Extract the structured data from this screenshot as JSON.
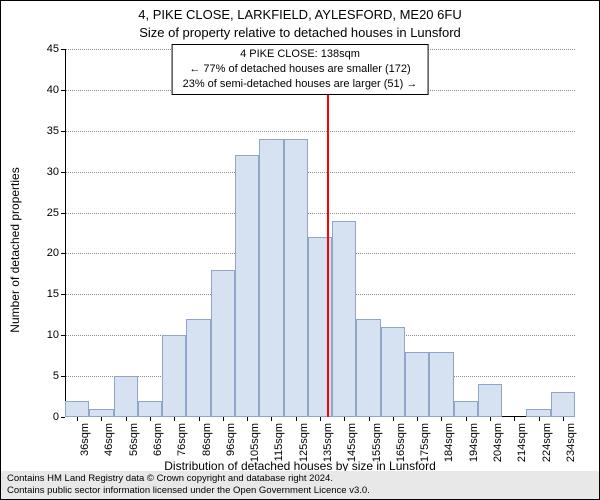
{
  "titles": {
    "address": "4, PIKE CLOSE, LARKFIELD, AYLESFORD, ME20 6FU",
    "subtitle": "Size of property relative to detached houses in Lunsford"
  },
  "info_box": {
    "line1": "4 PIKE CLOSE: 138sqm",
    "line2": "← 77% of detached houses are smaller (172)",
    "line3": "23% of semi-detached houses are larger (51) →"
  },
  "axes": {
    "xlabel": "Distribution of detached houses by size in Lunsford",
    "ylabel": "Number of detached properties",
    "ylim": [
      0,
      45
    ],
    "ytick_step": 5,
    "x_categories": [
      "36sqm",
      "46sqm",
      "56sqm",
      "66sqm",
      "76sqm",
      "86sqm",
      "96sqm",
      "105sqm",
      "115sqm",
      "125sqm",
      "135sqm",
      "145sqm",
      "155sqm",
      "165sqm",
      "175sqm",
      "184sqm",
      "194sqm",
      "204sqm",
      "214sqm",
      "224sqm",
      "234sqm"
    ]
  },
  "chart": {
    "type": "histogram",
    "values": [
      2,
      1,
      5,
      2,
      10,
      12,
      18,
      32,
      34,
      34,
      22,
      24,
      12,
      11,
      8,
      8,
      2,
      4,
      0,
      1,
      3
    ],
    "bar_fill": "#d6e1f1",
    "bar_stroke": "#8fa6c8",
    "bar_width_ratio": 1.0,
    "background_color": "#ffffff",
    "grid_color": "rgba(0,0,0,0.45)",
    "reference_line": {
      "x_value": 138,
      "x_range": [
        31,
        239
      ],
      "color": "#ff0000"
    },
    "title_fontsize": 13,
    "label_fontsize": 12,
    "tick_fontsize": 11
  },
  "footer": {
    "line1": "Contains HM Land Registry data © Crown copyright and database right 2024.",
    "line2": "Contains public sector information licensed under the Open Government Licence v3.0."
  }
}
